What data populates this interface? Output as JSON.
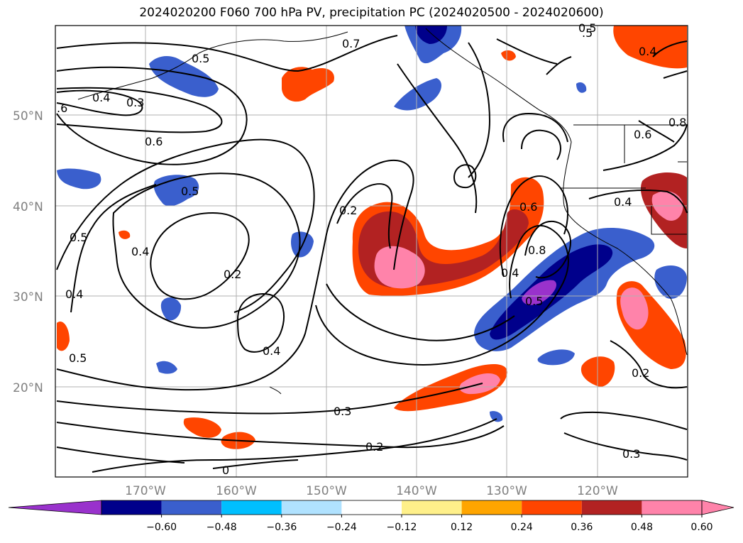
{
  "title": "2024020200 F060 700 hPa PV, precipitation PC (2024020500 - 2024020600)",
  "lat_labels": [
    "50°N",
    "40°N",
    "30°N",
    "20°N"
  ],
  "lon_labels": [
    "170°W",
    "160°W",
    "150°W",
    "140°W",
    "130°W",
    "120°W"
  ],
  "contour_labels": [
    "0.5",
    "0.7",
    "0.5",
    "0.4",
    "0.3",
    ".6",
    "0.6",
    "0.5",
    "0.5",
    "0.4",
    "0.2",
    "0.4",
    "0.5",
    "0.2",
    "0.4",
    "0.6",
    "0.8",
    "0.4",
    "0.5",
    "0.4",
    "0.3",
    "0.2",
    "0.2",
    "0.3",
    "0",
    ".5",
    "0.6",
    "0.8",
    "0.4"
  ],
  "colorbar": {
    "ticks": [
      "−0.60",
      "−0.48",
      "−0.36",
      "−0.24",
      "−0.12",
      "0.12",
      "0.24",
      "0.36",
      "0.48",
      "0.60"
    ],
    "colors": [
      "#9932cc",
      "#00008b",
      "#3a5fcd",
      "#00bfff",
      "#b0e2ff",
      "#ffffff",
      "#fff08a",
      "#ffa500",
      "#ff4500",
      "#b22222",
      "#ff83aa",
      "#ff83aa"
    ]
  }
}
